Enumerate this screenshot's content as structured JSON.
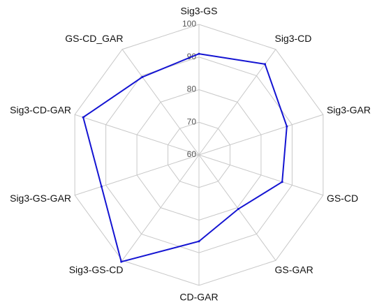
{
  "chart_data": {
    "type": "radar",
    "categories": [
      "Sig3-GS",
      "Sig3-CD",
      "Sig3-GAR",
      "GS-CD",
      "GS-GAR",
      "CD-GAR",
      "Sig3-GS-CD",
      "Sig3-GS-GAR",
      "Sig3-CD-GAR",
      "GS-CD_GAR"
    ],
    "series": [
      {
        "color": "#1414d2",
        "values": [
          91,
          94.4,
          88.3,
          86.8,
          80.5,
          86.5,
          100.5,
          91.4,
          97.3,
          89.5
        ]
      }
    ],
    "ylim": [
      60,
      100
    ],
    "yticks": [
      60,
      70,
      80,
      90,
      100
    ],
    "grid": true
  }
}
